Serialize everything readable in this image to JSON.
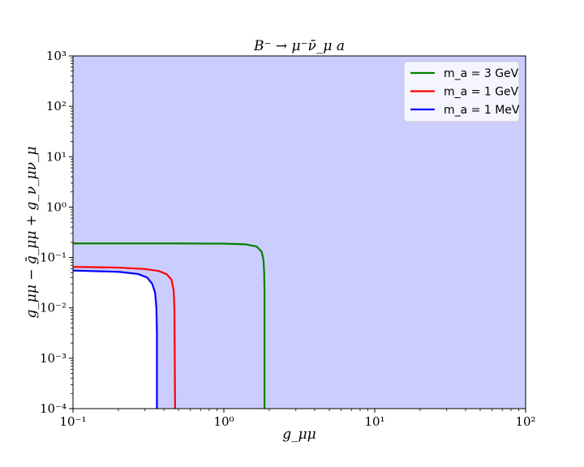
{
  "chart_data": {
    "type": "line",
    "title": "B⁻ → μ⁻ν̄_μ a",
    "xlabel": "g_μμ",
    "ylabel": "g_μμ − ḡ_μμ + g_ν_μν_μ",
    "xscale": "log",
    "yscale": "log",
    "xlim": [
      0.1,
      100
    ],
    "ylim": [
      0.0001,
      1000
    ],
    "x_ticks": [
      0.1,
      1,
      10,
      100
    ],
    "x_tick_labels": [
      "10⁻¹",
      "10⁰",
      "10¹",
      "10²"
    ],
    "y_ticks": [
      0.0001,
      0.001,
      0.01,
      0.1,
      1,
      10,
      100,
      1000
    ],
    "y_tick_labels": [
      "10⁻⁴",
      "10⁻³",
      "10⁻²",
      "10⁻¹",
      "10⁰",
      "10¹",
      "10²",
      "10³"
    ],
    "grid": false,
    "legend_position": "top-right",
    "series": [
      {
        "name": "m_a = 3 GeV",
        "color": "#008000",
        "fill": "#a990b4",
        "points": [
          [
            0.1,
            0.19
          ],
          [
            0.5,
            0.19
          ],
          [
            1.0,
            0.188
          ],
          [
            1.4,
            0.182
          ],
          [
            1.65,
            0.165
          ],
          [
            1.78,
            0.13
          ],
          [
            1.83,
            0.09
          ],
          [
            1.85,
            0.05
          ],
          [
            1.86,
            0.02
          ],
          [
            1.86,
            0.0001
          ]
        ]
      },
      {
        "name": "m_a = 1 GeV",
        "color": "#ff0000",
        "fill": "#cba1d8",
        "points": [
          [
            0.1,
            0.065
          ],
          [
            0.2,
            0.063
          ],
          [
            0.3,
            0.059
          ],
          [
            0.37,
            0.054
          ],
          [
            0.42,
            0.046
          ],
          [
            0.45,
            0.036
          ],
          [
            0.465,
            0.022
          ],
          [
            0.47,
            0.01
          ],
          [
            0.475,
            0.0001
          ]
        ]
      },
      {
        "name": "m_a = 1 MeV",
        "color": "#0000ff",
        "fill": "#cccdff",
        "points": [
          [
            0.1,
            0.055
          ],
          [
            0.2,
            0.052
          ],
          [
            0.27,
            0.047
          ],
          [
            0.31,
            0.04
          ],
          [
            0.335,
            0.03
          ],
          [
            0.35,
            0.02
          ],
          [
            0.357,
            0.01
          ],
          [
            0.36,
            0.003
          ],
          [
            0.36,
            0.0001
          ]
        ]
      }
    ]
  },
  "legend": {
    "items": [
      {
        "label": "m_a = 3 GeV"
      },
      {
        "label": "m_a = 1 GeV"
      },
      {
        "label": "m_a = 1 MeV"
      }
    ]
  }
}
